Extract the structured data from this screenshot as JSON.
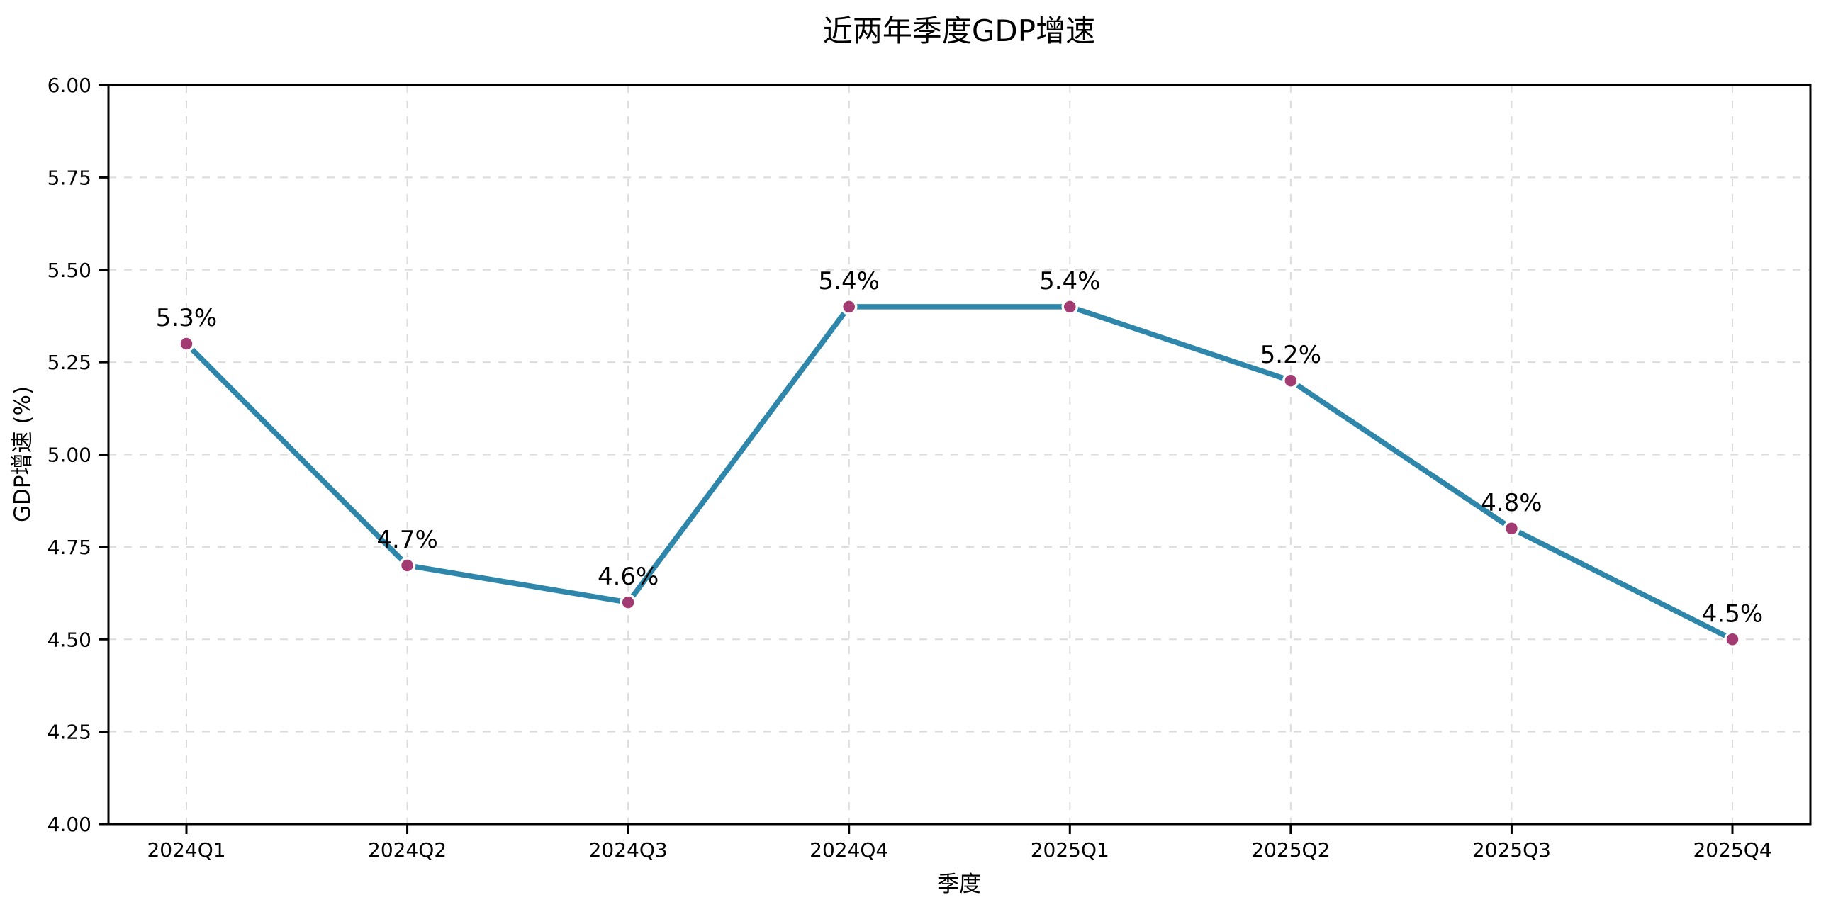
{
  "chart_data": {
    "type": "line",
    "title": "近两年季度GDP增速",
    "xlabel": "季度",
    "ylabel": "GDP增速 (%)",
    "categories": [
      "2024Q1",
      "2024Q2",
      "2024Q3",
      "2024Q4",
      "2025Q1",
      "2025Q2",
      "2025Q3",
      "2025Q4"
    ],
    "values": [
      5.3,
      4.7,
      4.6,
      5.4,
      5.4,
      5.2,
      4.8,
      4.5
    ],
    "point_labels": [
      "5.3%",
      "4.7%",
      "4.6%",
      "5.4%",
      "5.4%",
      "5.2%",
      "4.8%",
      "4.5%"
    ],
    "ylim": [
      4.0,
      6.0
    ],
    "ytick_values": [
      4.0,
      4.25,
      4.5,
      4.75,
      5.0,
      5.25,
      5.5,
      5.75,
      6.0
    ],
    "ytick_labels": [
      "4.00",
      "4.25",
      "4.50",
      "4.75",
      "5.00",
      "5.25",
      "5.50",
      "5.75",
      "6.00"
    ],
    "grid": true,
    "grid_style": "dashed",
    "legend": "none",
    "colors": {
      "line": "#2E86AB",
      "marker": "#A23B72",
      "marker_edge": "#ffffff",
      "grid": "#dcdcdc",
      "spine": "#000000",
      "text": "#000000",
      "background": "#ffffff"
    }
  }
}
